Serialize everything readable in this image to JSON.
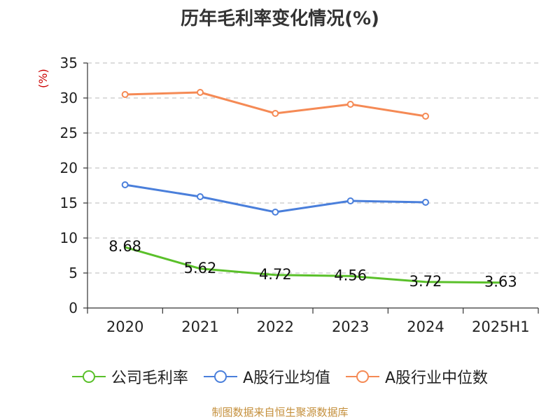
{
  "title": "历年毛利率变化情况(%)",
  "unit_label": "(%)",
  "source": "制图数据来自恒生聚源数据库",
  "chart_data": {
    "type": "line",
    "title": "历年毛利率变化情况(%)",
    "ylabel": "(%)",
    "xlabel": "",
    "categories": [
      "2020",
      "2021",
      "2022",
      "2023",
      "2024",
      "2025H1"
    ],
    "ylim": [
      0,
      35
    ],
    "yticks": [
      0,
      5,
      10,
      15,
      20,
      25,
      30,
      35
    ],
    "grid": true,
    "legend_position": "bottom",
    "series": [
      {
        "name": "公司毛利率",
        "color": "#5ac02a",
        "values": [
          8.68,
          5.62,
          4.72,
          4.56,
          3.72,
          3.63
        ],
        "labels": [
          "8.68",
          "5.62",
          "4.72",
          "4.56",
          "3.72",
          "3.63"
        ],
        "show_labels": true,
        "show_markers": false
      },
      {
        "name": "A股行业均值",
        "color": "#4a7fdb",
        "values": [
          17.6,
          15.9,
          13.7,
          15.3,
          15.1,
          null
        ],
        "show_labels": false,
        "show_markers": true
      },
      {
        "name": "A股行业中位数",
        "color": "#f58a55",
        "values": [
          30.5,
          30.8,
          27.8,
          29.1,
          27.4,
          null
        ],
        "show_labels": false,
        "show_markers": true
      }
    ]
  }
}
